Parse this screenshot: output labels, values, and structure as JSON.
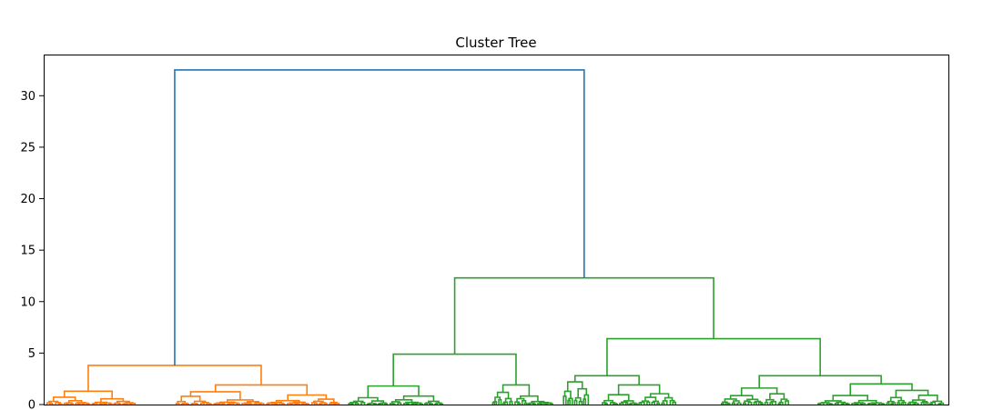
{
  "chart_data": {
    "type": "dendrogram",
    "title": "Cluster Tree",
    "xlabel": "",
    "ylabel": "",
    "ylim": [
      0,
      34
    ],
    "yticks": [
      0,
      5,
      10,
      15,
      20,
      25,
      30
    ],
    "grid": false,
    "legend": "none",
    "colors": {
      "root": "#1f77b4",
      "cluster_1": "#ff7f0e",
      "cluster_2": "#2ca02c"
    },
    "leaf_count": 200,
    "merges": [
      {
        "name": "root",
        "height": 32.5,
        "color": "root",
        "left": "cluster-1",
        "right": "cluster-2"
      },
      {
        "name": "cluster-1",
        "height": 3.8,
        "color": "cluster_1",
        "left": "c1-a",
        "right": "c1-b"
      },
      {
        "name": "c1-a",
        "height": 1.3,
        "color": "cluster_1"
      },
      {
        "name": "c1-b",
        "height": 1.9,
        "color": "cluster_1"
      },
      {
        "name": "cluster-2",
        "height": 12.3,
        "color": "cluster_2",
        "left": "c2-a",
        "right": "c2-b"
      },
      {
        "name": "c2-a",
        "height": 4.9,
        "color": "cluster_2",
        "left": "c2-a1",
        "right": "c2-a2"
      },
      {
        "name": "c2-a1",
        "height": 1.8,
        "color": "cluster_2"
      },
      {
        "name": "c2-a2",
        "height": 1.9,
        "color": "cluster_2"
      },
      {
        "name": "c2-b",
        "height": 6.4,
        "color": "cluster_2",
        "left": "c2-b1",
        "right": "c2-b2"
      },
      {
        "name": "c2-b1",
        "height": 2.8,
        "color": "cluster_2"
      },
      {
        "name": "c2-b2",
        "height": 2.8,
        "color": "cluster_2"
      }
    ]
  }
}
